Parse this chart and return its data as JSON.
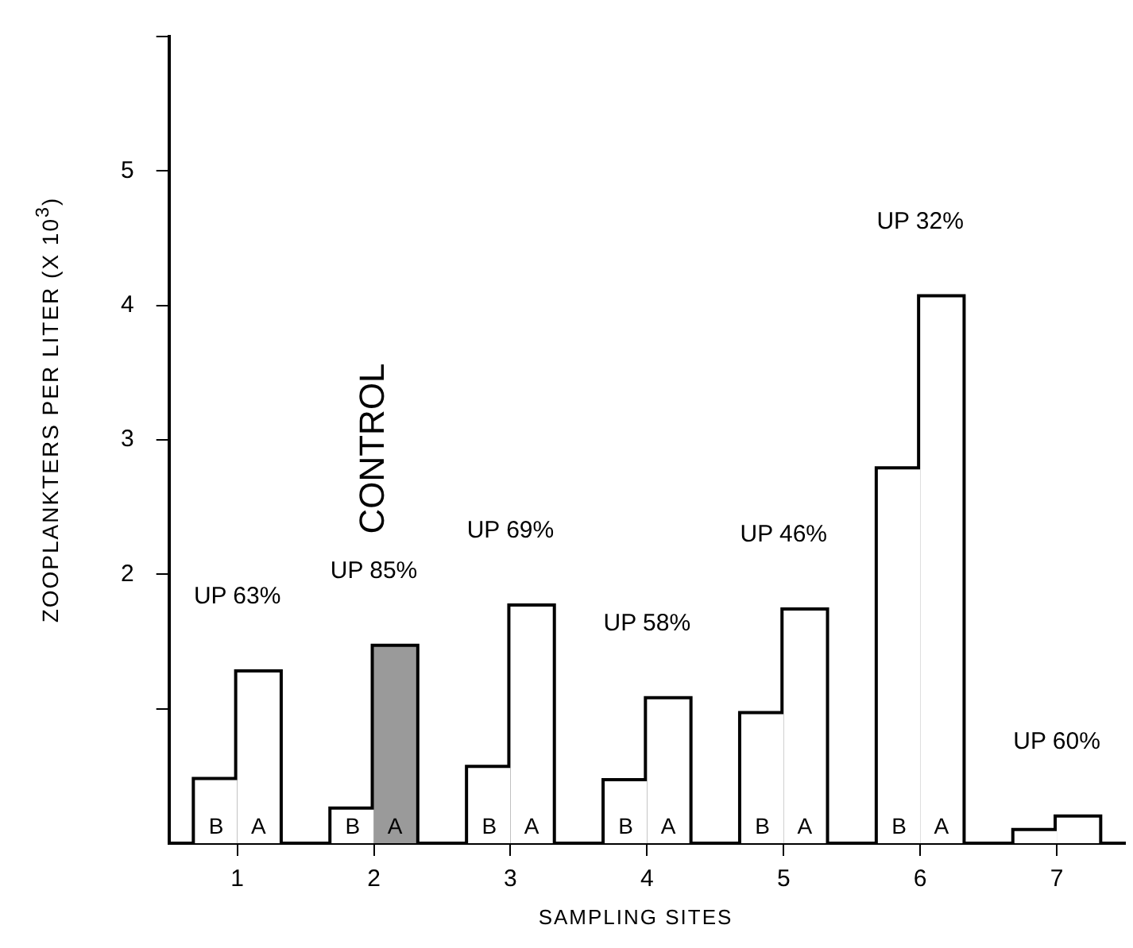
{
  "chart_data": {
    "type": "bar",
    "xlabel": "SAMPLING SITES",
    "ylabel": "ZOOPLANKTERS PER LITER (X 10$^{3}$)",
    "categories": [
      "1",
      "2",
      "3",
      "4",
      "5",
      "6",
      "7"
    ],
    "series": [
      {
        "name": "B",
        "color": "#ffffff",
        "values": [
          0.47,
          0.25,
          0.56,
          0.46,
          0.96,
          2.78,
          0.09
        ]
      },
      {
        "name": "A",
        "colors": [
          "#ffffff",
          "#9a9a9a",
          "#ffffff",
          "#ffffff",
          "#ffffff",
          "#ffffff",
          "#ffffff"
        ],
        "values": [
          1.27,
          1.46,
          1.76,
          1.07,
          1.73,
          4.06,
          0.19
        ]
      }
    ],
    "ylim": [
      0,
      6
    ],
    "yticks": [
      {
        "value": 1,
        "label": null
      },
      2,
      3,
      4,
      5,
      {
        "value": 6,
        "label": null
      }
    ],
    "grid": false,
    "legend": "bottom",
    "annotations": [
      {
        "text": "UP 63%",
        "x": "1",
        "y": 1.27
      },
      {
        "text": "UP 85%",
        "x": "2",
        "y": 1.46
      },
      {
        "text": "UP 69%",
        "x": "3",
        "y": 1.76
      },
      {
        "text": "UP 58%",
        "x": "4",
        "y": 1.07
      },
      {
        "text": "UP 46%",
        "x": "5",
        "y": 1.73
      },
      {
        "text": "UP 32%",
        "x": "6",
        "y": 4.06
      },
      {
        "text": "UP 60%",
        "x": "7",
        "y": 0.19
      },
      "CONTROL"
    ]
  }
}
